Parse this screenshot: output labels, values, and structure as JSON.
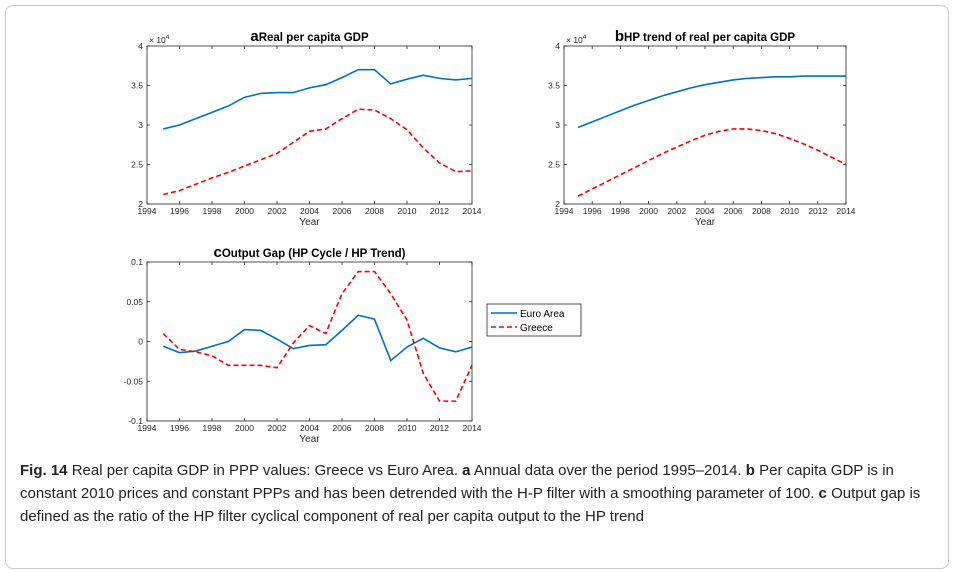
{
  "chart_data": [
    {
      "type": "line",
      "label": "a",
      "title": "Real per capita GDP",
      "xlabel": "Year",
      "y_multiplier": {
        "base": "× 10",
        "exponent": "4"
      },
      "x": [
        1995,
        1996,
        1997,
        1998,
        1999,
        2000,
        2001,
        2002,
        2003,
        2004,
        2005,
        2006,
        2007,
        2008,
        2009,
        2010,
        2011,
        2012,
        2013,
        2014
      ],
      "xlim": [
        1994,
        2014
      ],
      "xticks": [
        1994,
        1996,
        1998,
        2000,
        2002,
        2004,
        2006,
        2008,
        2010,
        2012,
        2014
      ],
      "ylim": [
        2,
        4
      ],
      "yticks": [
        2,
        2.5,
        3,
        3.5,
        4
      ],
      "series": [
        {
          "color": "#0072bd",
          "dash": false,
          "values": [
            2.95,
            3.0,
            3.08,
            3.16,
            3.24,
            3.35,
            3.4,
            3.41,
            3.41,
            3.47,
            3.51,
            3.6,
            3.7,
            3.7,
            3.52,
            3.58,
            3.63,
            3.59,
            3.57,
            3.59
          ]
        },
        {
          "color": "#ff0000",
          "dash": true,
          "values": [
            2.12,
            2.17,
            2.25,
            2.33,
            2.4,
            2.48,
            2.56,
            2.64,
            2.78,
            2.92,
            2.95,
            3.08,
            3.2,
            3.19,
            3.08,
            2.94,
            2.71,
            2.52,
            2.41,
            2.42
          ]
        }
      ]
    },
    {
      "type": "line",
      "label": "b",
      "title": "HP trend of real per capita GDP",
      "xlabel": "Year",
      "y_multiplier": {
        "base": "× 10",
        "exponent": "4"
      },
      "x": [
        1995,
        1996,
        1997,
        1998,
        1999,
        2000,
        2001,
        2002,
        2003,
        2004,
        2005,
        2006,
        2007,
        2008,
        2009,
        2010,
        2011,
        2012,
        2013,
        2014
      ],
      "xlim": [
        1994,
        2014
      ],
      "xticks": [
        1994,
        1996,
        1998,
        2000,
        2002,
        2004,
        2006,
        2008,
        2010,
        2012,
        2014
      ],
      "ylim": [
        2,
        4
      ],
      "yticks": [
        2,
        2.5,
        3,
        3.5,
        4
      ],
      "series": [
        {
          "color": "#0072bd",
          "dash": false,
          "values": [
            2.97,
            3.04,
            3.11,
            3.18,
            3.25,
            3.31,
            3.37,
            3.42,
            3.47,
            3.51,
            3.54,
            3.57,
            3.59,
            3.6,
            3.61,
            3.61,
            3.62,
            3.62,
            3.62,
            3.62
          ]
        },
        {
          "color": "#ff0000",
          "dash": true,
          "values": [
            2.1,
            2.19,
            2.28,
            2.37,
            2.46,
            2.55,
            2.64,
            2.72,
            2.8,
            2.87,
            2.92,
            2.95,
            2.95,
            2.93,
            2.89,
            2.83,
            2.76,
            2.68,
            2.59,
            2.5
          ]
        }
      ]
    },
    {
      "type": "line",
      "label": "c",
      "title": "Output Gap (HP Cycle / HP Trend)",
      "xlabel": "Year",
      "x": [
        1995,
        1996,
        1997,
        1998,
        1999,
        2000,
        2001,
        2002,
        2003,
        2004,
        2005,
        2006,
        2007,
        2008,
        2009,
        2010,
        2011,
        2012,
        2013,
        2014
      ],
      "xlim": [
        1994,
        2014
      ],
      "xticks": [
        1994,
        1996,
        1998,
        2000,
        2002,
        2004,
        2006,
        2008,
        2010,
        2012,
        2014
      ],
      "ylim": [
        -0.1,
        0.1
      ],
      "yticks": [
        -0.1,
        -0.05,
        0,
        0.05,
        0.1
      ],
      "legend": "right",
      "series": [
        {
          "name": "Euro Area",
          "color": "#0072bd",
          "dash": false,
          "values": [
            -0.006,
            -0.014,
            -0.012,
            -0.006,
            0.0,
            0.015,
            0.014,
            0.003,
            -0.009,
            -0.005,
            -0.004,
            0.014,
            0.033,
            0.028,
            -0.024,
            -0.007,
            0.004,
            -0.008,
            -0.013,
            -0.007
          ]
        },
        {
          "name": "Greece",
          "color": "#ff0000",
          "dash": true,
          "values": [
            0.01,
            -0.01,
            -0.013,
            -0.018,
            -0.03,
            -0.03,
            -0.03,
            -0.033,
            -0.002,
            0.02,
            0.01,
            0.06,
            0.088,
            0.088,
            0.06,
            0.027,
            -0.04,
            -0.075,
            -0.075,
            -0.03
          ]
        }
      ]
    }
  ],
  "caption": {
    "label": "Fig. 14",
    "parts": [
      {
        "text": "Real per capita GDP in PPP values: Greece vs Euro Area."
      },
      {
        "label": "a",
        "text": "Annual data over the period 1995–2014."
      },
      {
        "label": "b",
        "text": "Per capita GDP is in constant 2010 prices and constant PPPs and has been detrended with the H-P filter with a smoothing parameter of 100."
      },
      {
        "label": "c",
        "text": "Output gap is defined as the ratio of the HP filter cyclical component of real per capita output to the HP trend"
      }
    ]
  }
}
